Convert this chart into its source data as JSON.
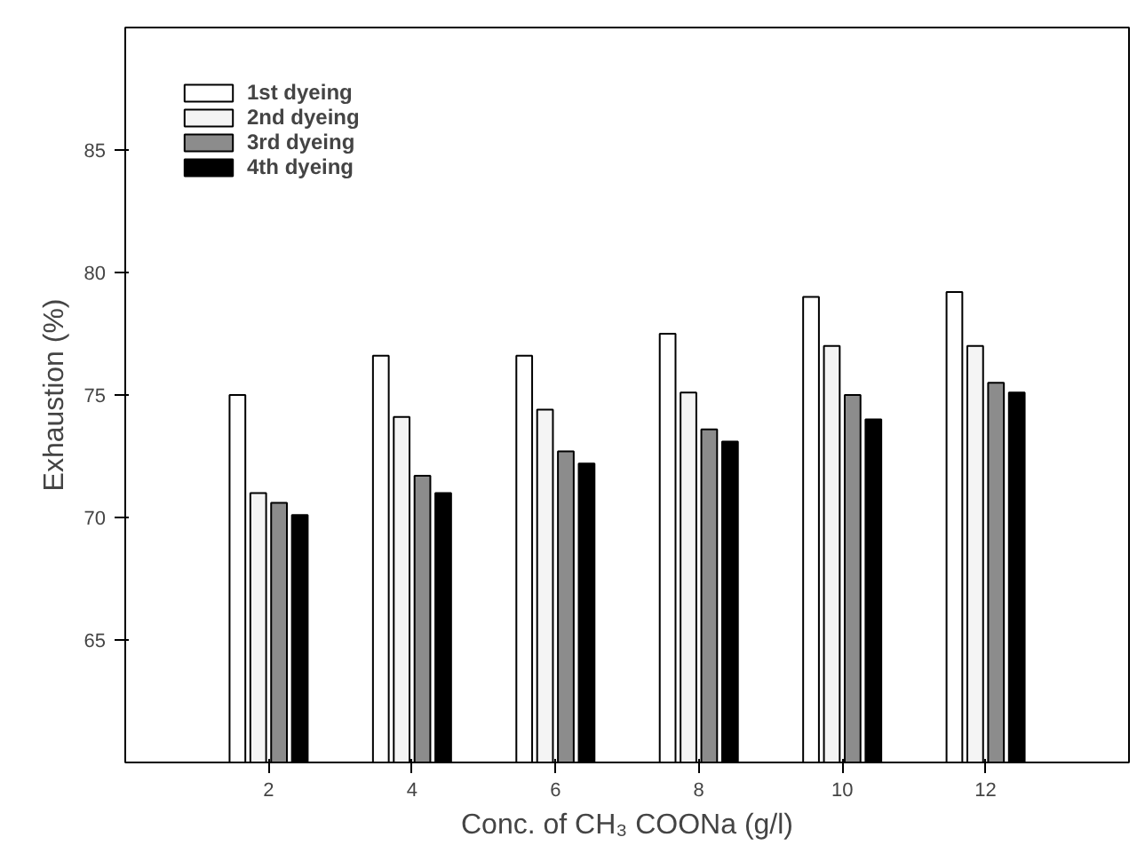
{
  "chart_data": {
    "type": "bar",
    "xlabel": "Conc. of CH₃ COONa (g/l)",
    "ylabel": "Exhaustion (%)",
    "x": [
      2,
      4,
      6,
      8,
      10,
      12
    ],
    "xlim": [
      0,
      14
    ],
    "xticks": [
      2,
      4,
      6,
      8,
      10,
      12
    ],
    "ylim": [
      60,
      90
    ],
    "yticks": [
      65,
      70,
      75,
      80,
      85
    ],
    "series": [
      {
        "name": "1st dyeing",
        "color": "#ffffff",
        "values": [
          75.0,
          76.6,
          76.6,
          77.5,
          79.0,
          79.2
        ]
      },
      {
        "name": "2nd dyeing",
        "color": "#f4f4f4",
        "values": [
          71.0,
          74.1,
          74.4,
          75.1,
          77.0,
          77.0
        ]
      },
      {
        "name": "3rd dyeing",
        "color": "#8c8c8c",
        "values": [
          70.6,
          71.7,
          72.7,
          73.6,
          75.0,
          75.5
        ]
      },
      {
        "name": "4th dyeing",
        "color": "#000000",
        "values": [
          70.1,
          71.0,
          72.2,
          73.1,
          74.0,
          75.1
        ]
      }
    ],
    "legend": "top left",
    "grid": false
  }
}
